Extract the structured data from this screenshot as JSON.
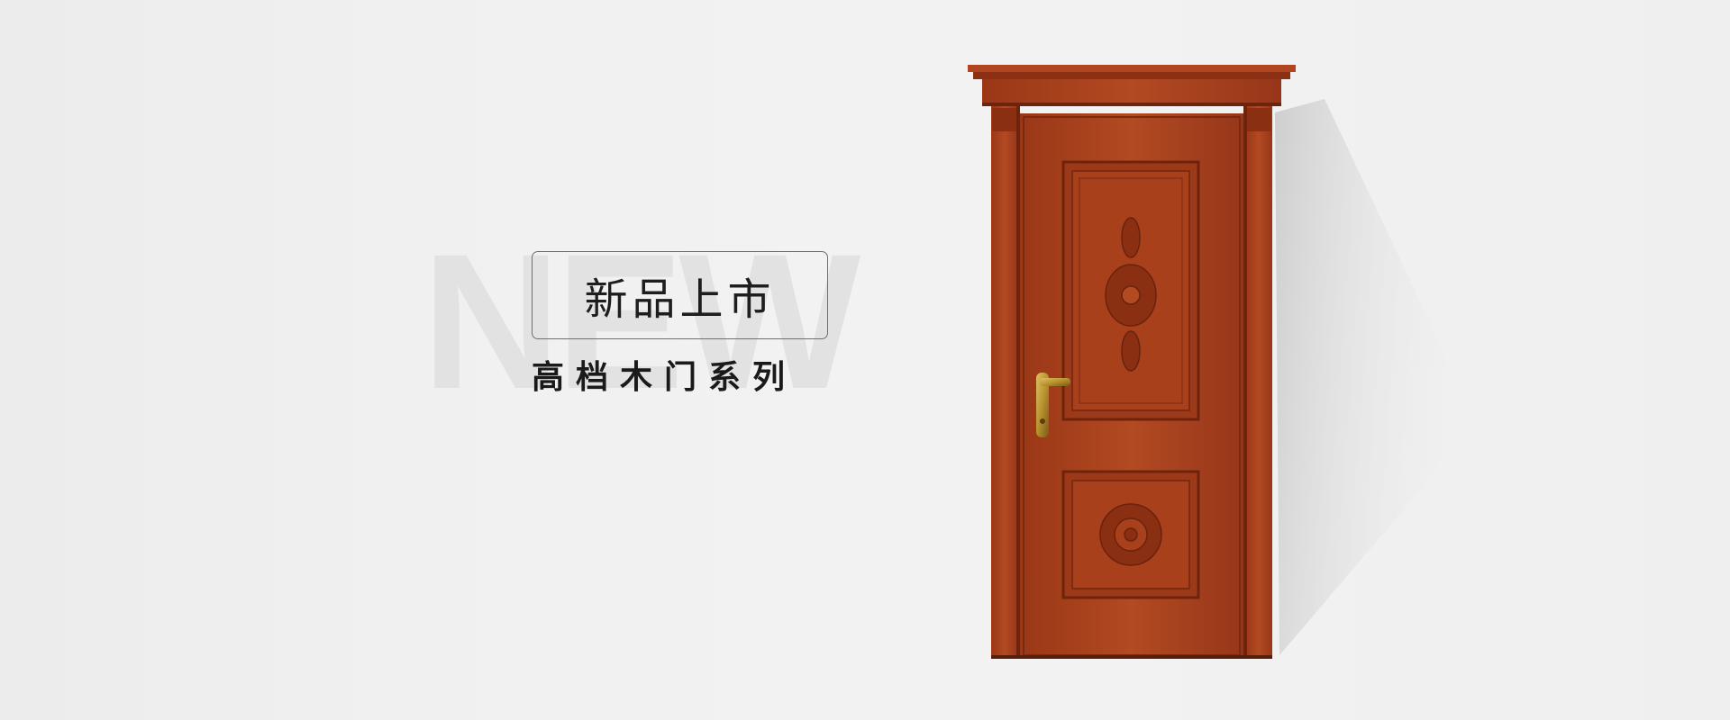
{
  "banner": {
    "watermark": "NEW",
    "title": "新品上市",
    "subtitle": "高档木门系列"
  },
  "colors": {
    "background": "#efefef",
    "watermark": "#e2e2e2",
    "door_wood": "#a8401c",
    "door_dark": "#7e2a10",
    "handle": "#b8922e"
  },
  "door": {
    "icon": "carved-wooden-door-icon",
    "hardware": "brass-lever-handle-icon"
  }
}
